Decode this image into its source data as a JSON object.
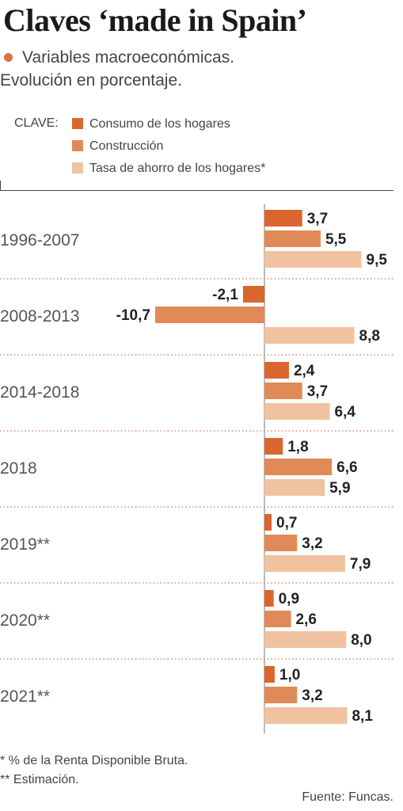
{
  "header": {
    "title": "Claves ‘made in Spain’",
    "subtitle_line1": "Variables macroeconómicas.",
    "subtitle_line2": "Evolución en porcentaje."
  },
  "legend": {
    "label": "CLAVE:",
    "items": [
      "Consumo de los hogares",
      "Construcción",
      "Tasa de ahorro de los hogares*"
    ]
  },
  "colors": {
    "consumo": "#d9662e",
    "construccion": "#e08a58",
    "ahorro": "#f0c2a0",
    "accent_dot": "#d9733a"
  },
  "chart_data": {
    "type": "bar",
    "orientation": "horizontal",
    "categories": [
      "1996-2007",
      "2008-2013",
      "2014-2018",
      "2018",
      "2019**",
      "2020**",
      "2021**"
    ],
    "series": [
      {
        "name": "Consumo de los hogares",
        "values": [
          3.7,
          -2.1,
          2.4,
          1.8,
          0.7,
          0.9,
          1.0
        ],
        "labels": [
          "3,7",
          "-2,1",
          "2,4",
          "1,8",
          "0,7",
          "0,9",
          "1,0"
        ]
      },
      {
        "name": "Construcción",
        "values": [
          5.5,
          -10.7,
          3.7,
          6.6,
          3.2,
          2.6,
          3.2
        ],
        "labels": [
          "5,5",
          "-10,7",
          "3,7",
          "6,6",
          "3,2",
          "2,6",
          "3,2"
        ]
      },
      {
        "name": "Tasa de ahorro de los hogares*",
        "values": [
          9.5,
          null,
          6.4,
          5.9,
          7.9,
          8.0,
          8.1
        ],
        "labels": [
          "9,5",
          "8,8",
          "6,4",
          "5,9",
          "7,9",
          "8,0",
          "8,1"
        ]
      }
    ],
    "note": "2008-2013 tasa de ahorro shown as 8,8",
    "grid": false,
    "legend_position": "top-left"
  },
  "footnotes": {
    "line1": "* % de la Renta Disponible Bruta.",
    "line2": "** Estimación."
  },
  "source": "Fuente: Funcas."
}
